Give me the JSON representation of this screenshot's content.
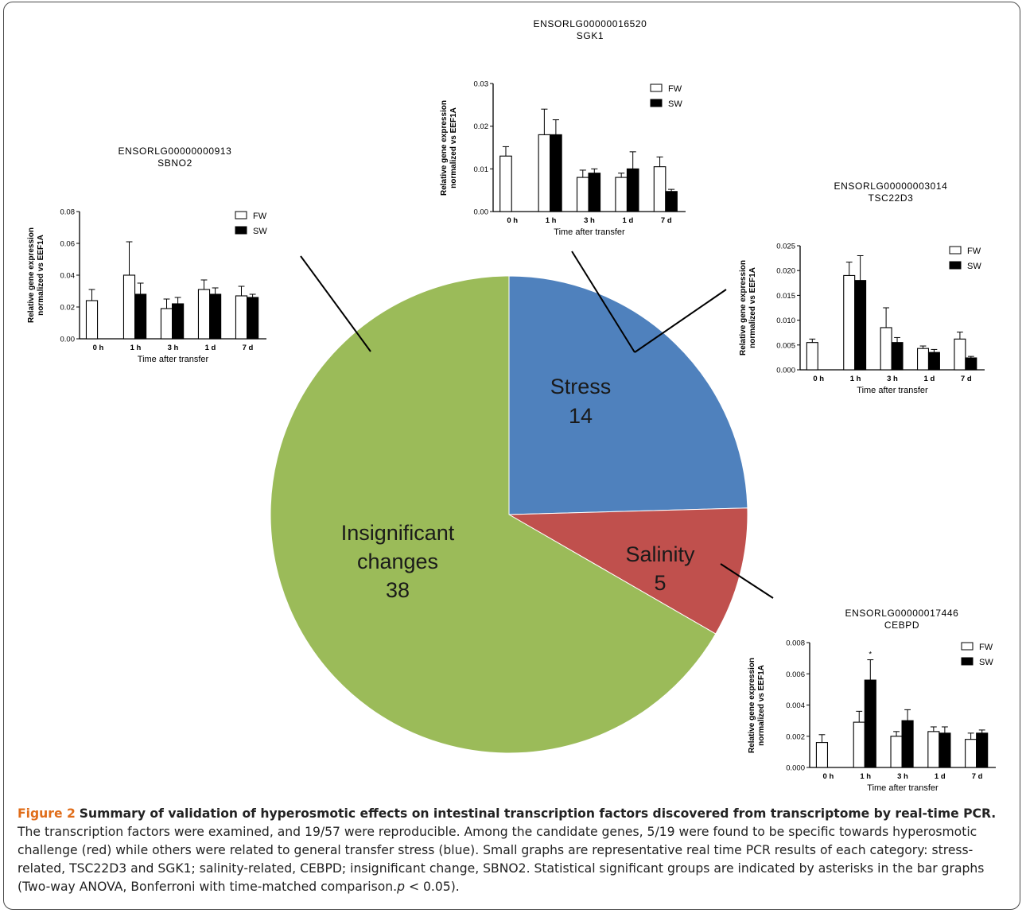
{
  "pie": {
    "type": "pie",
    "total": 57,
    "slices": [
      {
        "key": "stress",
        "label": "Stress",
        "value": 14,
        "color": "#4f81bd"
      },
      {
        "key": "salinity",
        "label": "Salinity",
        "value": 5,
        "color": "#c0504d"
      },
      {
        "key": "insignificant",
        "label_lines": [
          "Insignificant",
          "changes"
        ],
        "value": 38,
        "color": "#9bbb59"
      }
    ]
  },
  "chart_data": [
    {
      "id": "sbno2",
      "type": "bar",
      "title_lines": [
        "ENSORLG00000000913",
        "SBNO2"
      ],
      "categories": [
        "0 h",
        "1 h",
        "3 h",
        "1 d",
        "7 d"
      ],
      "series": [
        {
          "name": "FW",
          "values": [
            0.024,
            0.04,
            0.019,
            0.031,
            0.027
          ],
          "errors": [
            0.007,
            0.021,
            0.006,
            0.006,
            0.006
          ],
          "color": "#ffffff"
        },
        {
          "name": "SW",
          "values": [
            null,
            0.028,
            0.022,
            0.028,
            0.026
          ],
          "errors": [
            null,
            0.007,
            0.004,
            0.004,
            0.002
          ],
          "color": "#000000"
        }
      ],
      "ylim": [
        0,
        0.08
      ],
      "yticks": [
        0.0,
        0.02,
        0.04,
        0.06,
        0.08
      ],
      "ytick_labels": [
        "0.00",
        "0.02",
        "0.04",
        "0.06",
        "0.08"
      ],
      "xlabel": "Time after transfer",
      "ylabel_lines": [
        "Relative gene expression",
        "normalized vs EEF1A"
      ],
      "legend": "top-right",
      "annotations": []
    },
    {
      "id": "sgk1",
      "type": "bar",
      "title_lines": [
        "ENSORLG00000016520",
        "SGK1"
      ],
      "categories": [
        "0 h",
        "1 h",
        "3 h",
        "1 d",
        "7 d"
      ],
      "series": [
        {
          "name": "FW",
          "values": [
            0.013,
            0.018,
            0.008,
            0.008,
            0.0105
          ],
          "errors": [
            0.0022,
            0.006,
            0.0017,
            0.001,
            0.0023
          ],
          "color": "#ffffff"
        },
        {
          "name": "SW",
          "values": [
            null,
            0.018,
            0.009,
            0.01,
            0.0047
          ],
          "errors": [
            null,
            0.0035,
            0.001,
            0.004,
            0.0005
          ],
          "color": "#000000"
        }
      ],
      "ylim": [
        0,
        0.03
      ],
      "yticks": [
        0.0,
        0.01,
        0.02,
        0.03
      ],
      "ytick_labels": [
        "0.00",
        "0.01",
        "0.02",
        "0.03"
      ],
      "xlabel": "Time after transfer",
      "ylabel_lines": [
        "Relative gene expression",
        "normalized vs EEF1A"
      ],
      "legend": "top-right",
      "annotations": []
    },
    {
      "id": "tsc22d3",
      "type": "bar",
      "title_lines": [
        "ENSORLG00000003014",
        "TSC22D3"
      ],
      "categories": [
        "0 h",
        "1 h",
        "3 h",
        "1 d",
        "7 d"
      ],
      "series": [
        {
          "name": "FW",
          "values": [
            0.0055,
            0.019,
            0.0085,
            0.0043,
            0.0062
          ],
          "errors": [
            0.0007,
            0.0027,
            0.004,
            0.0005,
            0.0014
          ],
          "color": "#ffffff"
        },
        {
          "name": "SW",
          "values": [
            null,
            0.018,
            0.0055,
            0.0035,
            0.0024
          ],
          "errors": [
            null,
            0.005,
            0.001,
            0.0006,
            0.0003
          ],
          "color": "#000000"
        }
      ],
      "ylim": [
        0,
        0.025
      ],
      "yticks": [
        0.0,
        0.005,
        0.01,
        0.015,
        0.02,
        0.025
      ],
      "ytick_labels": [
        "0.000",
        "0.005",
        "0.010",
        "0.015",
        "0.020",
        "0.025"
      ],
      "xlabel": "Time after transfer",
      "ylabel_lines": [
        "Relative gene expression",
        "normalized vs EEF1A"
      ],
      "legend": "top-right",
      "annotations": []
    },
    {
      "id": "cebpd",
      "type": "bar",
      "title_lines": [
        "ENSORLG00000017446",
        "CEBPD"
      ],
      "categories": [
        "0 h",
        "1 h",
        "3 h",
        "1 d",
        "7 d"
      ],
      "series": [
        {
          "name": "FW",
          "values": [
            0.0016,
            0.0029,
            0.002,
            0.0023,
            0.0018
          ],
          "errors": [
            0.0005,
            0.0007,
            0.0003,
            0.0003,
            0.0004
          ],
          "color": "#ffffff"
        },
        {
          "name": "SW",
          "values": [
            null,
            0.0056,
            0.003,
            0.0022,
            0.0022
          ],
          "errors": [
            null,
            0.0013,
            0.0007,
            0.0004,
            0.0002
          ],
          "color": "#000000"
        }
      ],
      "ylim": [
        0,
        0.008
      ],
      "yticks": [
        0.0,
        0.002,
        0.004,
        0.006,
        0.008
      ],
      "ytick_labels": [
        "0.000",
        "0.002",
        "0.004",
        "0.006",
        "0.008"
      ],
      "xlabel": "Time after transfer",
      "ylabel_lines": [
        "Relative gene expression",
        "normalized vs EEF1A"
      ],
      "legend": "top-right",
      "annotations": [
        {
          "category": "1 h",
          "series": "SW",
          "text": "*"
        }
      ]
    }
  ],
  "caption": {
    "title": "Figure 2",
    "lead": "Summary of validation of hyperosmotic effects on intestinal transcription factors discovered from transcriptome by real-time PCR.",
    "body": "The transcription factors were examined, and 19/57 were reproducible. Among the candidate genes, 5/19 were found to be specific towards hyperosmotic challenge (red) while others were related to general transfer stress (blue). Small graphs are representative real time PCR results of each category: stress-related, TSC22D3 and SGK1; salinity-related, CEBPD; insignificant change, SBNO2. Statistical significant groups are indicated by asterisks in the bar graphs (Two-way ANOVA, Bonferroni with time-matched comparison.",
    "p_symbol": "p",
    "p_rest": " < 0.05)."
  }
}
